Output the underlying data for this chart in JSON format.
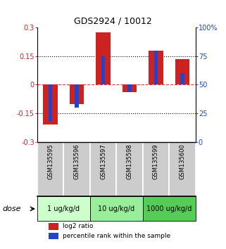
{
  "title": "GDS2924 / 10012",
  "samples": [
    "GSM135595",
    "GSM135596",
    "GSM135597",
    "GSM135598",
    "GSM135599",
    "GSM135600"
  ],
  "red_values": [
    -0.21,
    -0.1,
    0.275,
    -0.04,
    0.18,
    0.135
  ],
  "blue_values_pct": [
    18,
    30,
    75,
    44,
    80,
    60
  ],
  "ylim_left": [
    -0.3,
    0.3
  ],
  "ylim_right": [
    0,
    100
  ],
  "yticks_left": [
    -0.3,
    -0.15,
    0,
    0.15,
    0.3
  ],
  "yticks_right": [
    0,
    25,
    50,
    75,
    100
  ],
  "ytick_labels_left": [
    "-0.3",
    "-0.15",
    "0",
    "0.15",
    "0.3"
  ],
  "ytick_labels_right": [
    "0",
    "25",
    "50",
    "75",
    "100%"
  ],
  "hlines_dotted": [
    -0.15,
    0.15
  ],
  "hline_zero": 0,
  "dose_groups": [
    {
      "label": "1 ug/kg/d",
      "start": 0,
      "end": 1,
      "color": "#ccffcc"
    },
    {
      "label": "10 ug/kg/d",
      "start": 2,
      "end": 3,
      "color": "#99ee99"
    },
    {
      "label": "1000 ug/kg/d",
      "start": 4,
      "end": 5,
      "color": "#55cc55"
    }
  ],
  "dose_label": "dose",
  "legend_red": "log2 ratio",
  "legend_blue": "percentile rank within the sample",
  "red_color": "#cc2222",
  "blue_color": "#2244cc",
  "bar_width": 0.55,
  "blue_bar_width": 0.15,
  "sample_box_color": "#cccccc",
  "zero_line_color": "#dd3333",
  "sample_label_fontsize": 6,
  "title_fontsize": 9,
  "tick_fontsize": 7,
  "dose_fontsize": 7,
  "legend_fontsize": 6.5
}
